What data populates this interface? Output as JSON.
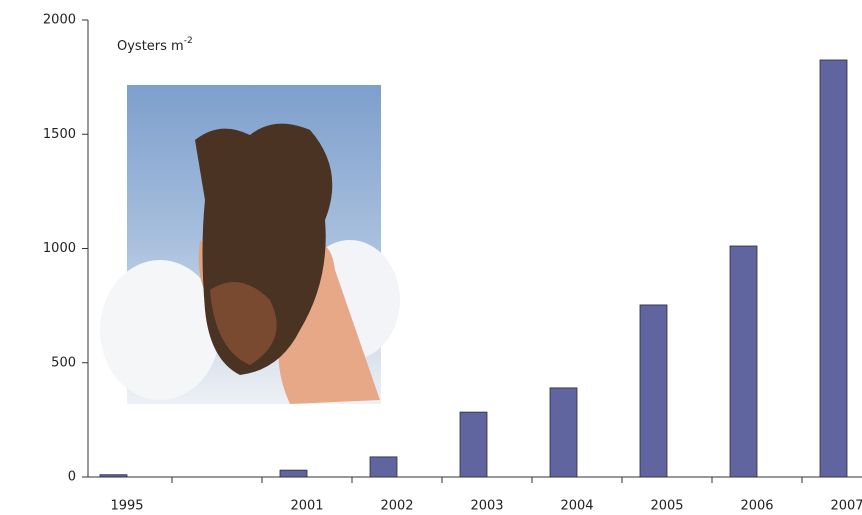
{
  "chart_data": {
    "type": "bar",
    "ylabel": "Oysters m",
    "ylabel_superscript": "-2",
    "categories": [
      "1995",
      null,
      "2001",
      "2002",
      "2003",
      "2004",
      "2005",
      "2006",
      "2007"
    ],
    "values": [
      10,
      null,
      30,
      88,
      284,
      390,
      753,
      1011,
      1825
    ],
    "color": "#60649f",
    "ylim": [
      0,
      2000
    ],
    "yticks": [
      0,
      500,
      1000,
      1500,
      2000
    ],
    "grid": false
  }
}
